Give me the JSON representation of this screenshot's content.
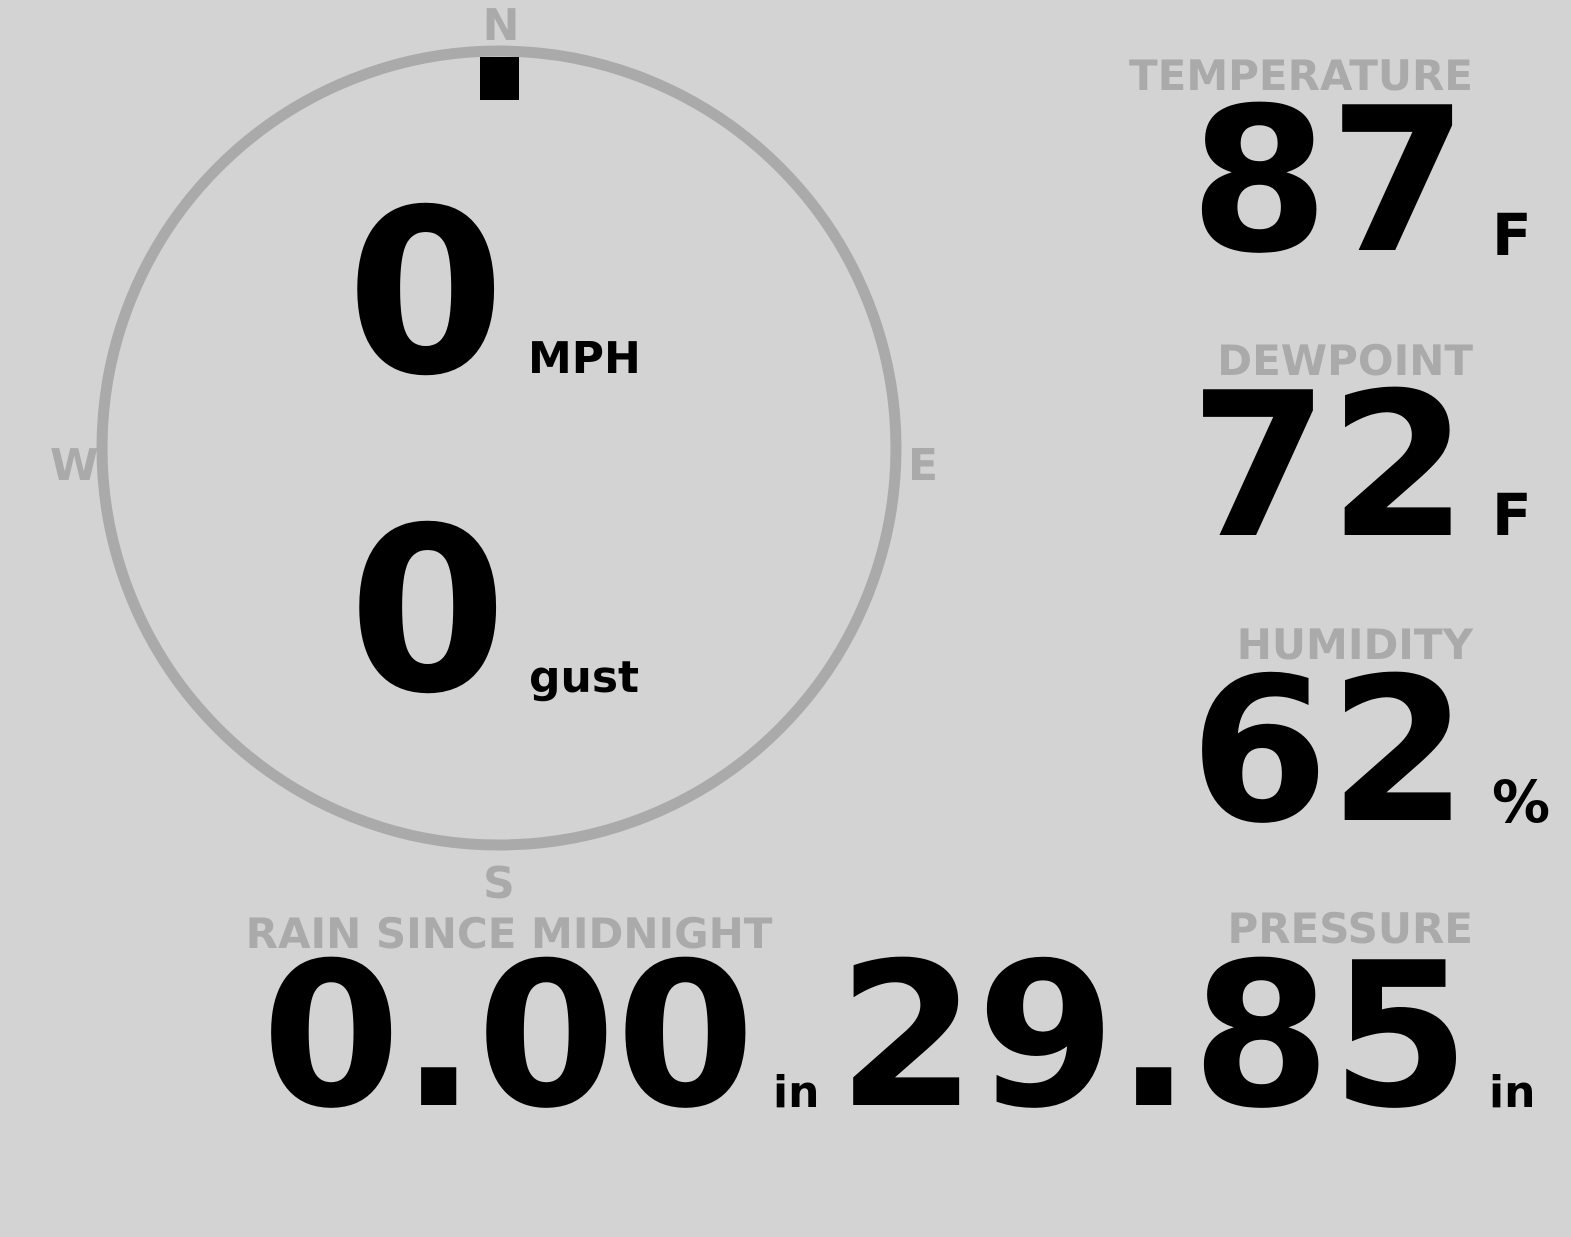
{
  "colors": {
    "background": "#d3d3d3",
    "label": "#aaaaaa",
    "value": "#000000",
    "compass_ring": "#aaaaaa",
    "wind_pointer": "#000000"
  },
  "compass": {
    "north": "N",
    "south": "S",
    "east": "E",
    "west": "W",
    "wind_direction_deg": 0
  },
  "wind": {
    "speed": "0",
    "speed_unit": "MPH",
    "gust": "0",
    "gust_label": "gust"
  },
  "temperature": {
    "label": "TEMPERATURE",
    "value": "87",
    "unit": "F"
  },
  "dewpoint": {
    "label": "DEWPOINT",
    "value": "72",
    "unit": "F"
  },
  "humidity": {
    "label": "HUMIDITY",
    "value": "62",
    "unit": "%"
  },
  "rain": {
    "label": "RAIN SINCE MIDNIGHT",
    "value": "0.00",
    "unit": "in"
  },
  "pressure": {
    "label": "PRESSURE",
    "value": "29.85",
    "unit": "in"
  }
}
